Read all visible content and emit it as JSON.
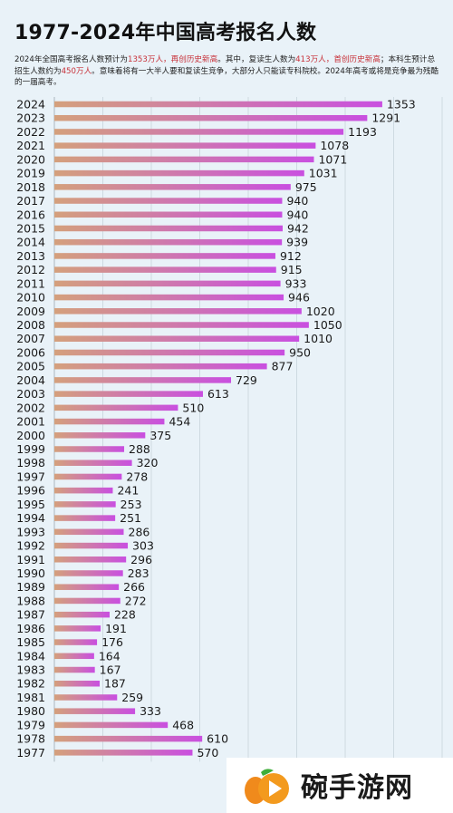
{
  "title": "1977-2024年中国高考报名人数",
  "description": {
    "p1": "2024年全国高考报名人数预计为",
    "h1": "1353万人，再创历史新高",
    "p2": "。其中，复读生人数为",
    "h2": "413万人，首创历史新高",
    "p3": "；本科生预计总招生人数约为",
    "h3": "450万人",
    "p4": "。意味着将有一大半人要和复读生竞争，大部分人只能读专科院校。2024年高考或将是竞争最为残酷的一届高考。"
  },
  "colors": {
    "bar_start": "#d4a07c",
    "bar_end": "#c94fe0",
    "highlight": "#c8323a"
  },
  "chart_data": {
    "type": "bar",
    "orientation": "horizontal",
    "categories": [
      "2024",
      "2023",
      "2022",
      "2021",
      "2020",
      "2019",
      "2018",
      "2017",
      "2016",
      "2015",
      "2014",
      "2013",
      "2012",
      "2011",
      "2010",
      "2009",
      "2008",
      "2007",
      "2006",
      "2005",
      "2004",
      "2003",
      "2002",
      "2001",
      "2000",
      "1999",
      "1998",
      "1997",
      "1996",
      "1995",
      "1994",
      "1993",
      "1992",
      "1991",
      "1990",
      "1989",
      "1988",
      "1987",
      "1986",
      "1985",
      "1984",
      "1983",
      "1982",
      "1981",
      "1980",
      "1979",
      "1978",
      "1977"
    ],
    "values": [
      1353,
      1291,
      1193,
      1078,
      1071,
      1031,
      975,
      940,
      940,
      942,
      939,
      912,
      915,
      933,
      946,
      1020,
      1050,
      1010,
      950,
      877,
      729,
      613,
      510,
      454,
      375,
      288,
      320,
      278,
      241,
      253,
      251,
      286,
      303,
      296,
      283,
      266,
      272,
      228,
      191,
      176,
      164,
      167,
      187,
      259,
      333,
      468,
      610,
      570
    ],
    "xlim": [
      0,
      1600
    ],
    "grid": true
  },
  "watermark": {
    "text": "碗手游网",
    "logo": "orange-play-logo"
  }
}
